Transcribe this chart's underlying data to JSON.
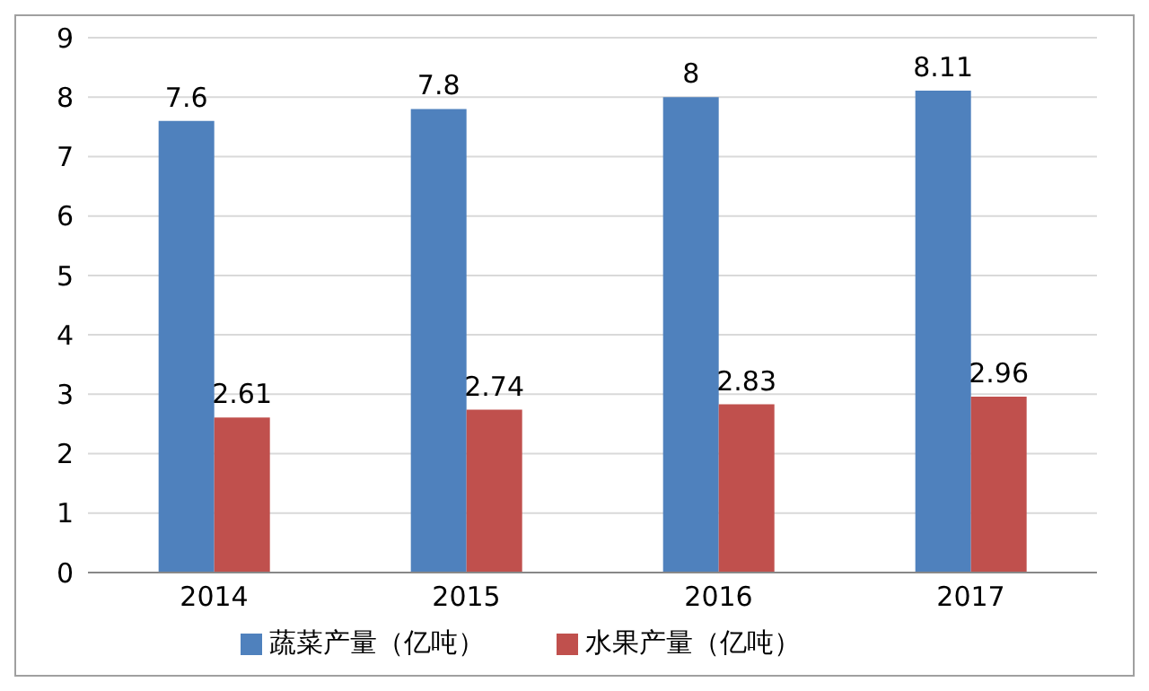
{
  "chart_data": {
    "type": "bar",
    "categories": [
      "2014",
      "2015",
      "2016",
      "2017"
    ],
    "series": [
      {
        "name": "蔬菜产量（亿吨）",
        "color": "#4f81bd",
        "values": [
          7.6,
          7.8,
          8,
          8.11
        ]
      },
      {
        "name": "水果产量（亿吨）",
        "color": "#c0504d",
        "values": [
          2.61,
          2.74,
          2.83,
          2.96
        ]
      }
    ],
    "ylim": [
      0,
      9
    ],
    "yticks": [
      0,
      1,
      2,
      3,
      4,
      5,
      6,
      7,
      8,
      9
    ],
    "grid": "y",
    "legend": "bottom",
    "data_labels": true
  }
}
